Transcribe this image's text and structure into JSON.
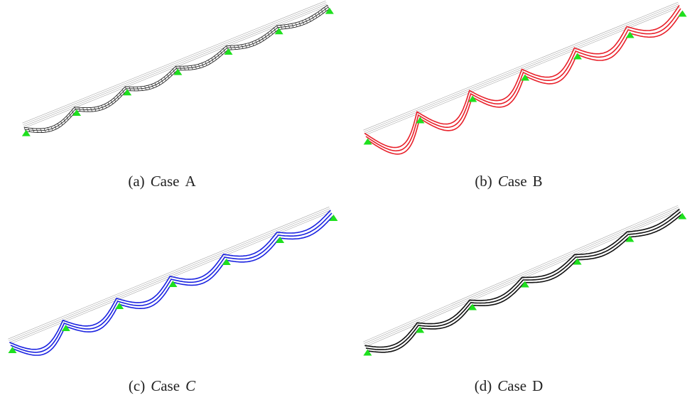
{
  "panels": [
    {
      "label": "(a)",
      "word": "Case",
      "id": "A",
      "id_italic": false
    },
    {
      "label": "(b)",
      "word": "Case",
      "id": "B",
      "id_italic": false
    },
    {
      "label": "(c)",
      "word": "Case",
      "id": "C",
      "id_italic": true
    },
    {
      "label": "(d)",
      "word": "Case",
      "id": "D",
      "id_italic": false
    }
  ]
}
